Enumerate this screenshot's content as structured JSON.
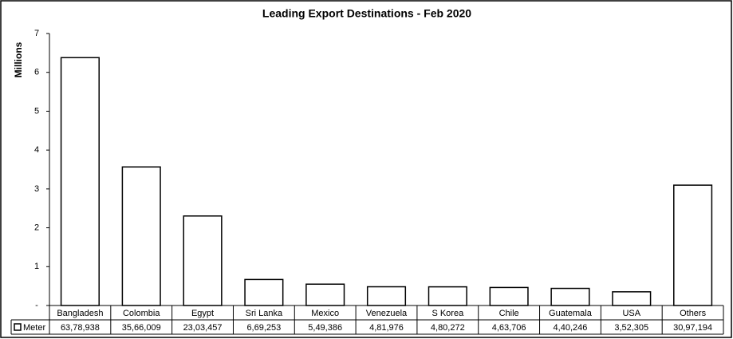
{
  "chart_data": {
    "type": "bar",
    "title": "Leading Export Destinations - Feb 2020",
    "y_label": "Millions",
    "categories": [
      "Bangladesh",
      "Colombia",
      "Egypt",
      "Sri Lanka",
      "Mexico",
      "Venezuela",
      "S Korea",
      "Chile",
      "Guatemala",
      "USA",
      "Others"
    ],
    "series": [
      {
        "name": "Meter",
        "color": "#ffffff",
        "values": [
          6.378938,
          3.566009,
          2.303457,
          0.669253,
          0.549386,
          0.481976,
          0.480272,
          0.463706,
          0.440246,
          0.352305,
          3.097194
        ],
        "value_labels": [
          "63,78,938",
          "35,66,009",
          "23,03,457",
          "6,69,253",
          "5,49,386",
          "4,81,976",
          "4,80,272",
          "4,63,706",
          "4,40,246",
          "3,52,305",
          "30,97,194"
        ]
      }
    ],
    "ylim": [
      0,
      7
    ],
    "yticks": [
      {
        "value": 0,
        "label": "-"
      },
      1,
      2,
      3,
      4,
      5,
      6,
      7
    ],
    "grid": false
  }
}
